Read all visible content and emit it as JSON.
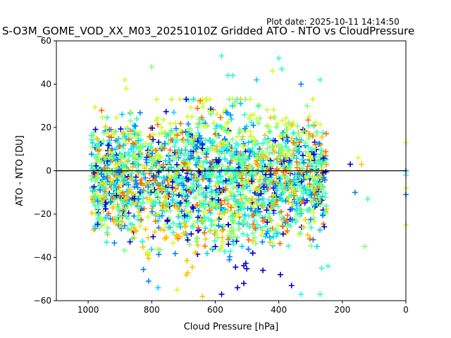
{
  "plot_date": "Plot date: 2025-10-11 14:14:50",
  "title": "S-O3M_GOME_VOD_XX_M03_20251010Z Gridded ATO - NTO vs CloudPressure",
  "chart_data": {
    "type": "scatter",
    "title": "S-O3M_GOME_VOD_XX_M03_20251010Z Gridded ATO - NTO vs CloudPressure",
    "xlabel": "Cloud Pressure [hPa]",
    "ylabel": "ATO - NTO [DU]",
    "xlim": [
      1100,
      0
    ],
    "ylim": [
      -60,
      60
    ],
    "x_ticks": [
      1000,
      800,
      600,
      400,
      200,
      0
    ],
    "y_ticks": [
      -60,
      -40,
      -20,
      0,
      20,
      40,
      60
    ],
    "x_tick_labels": [
      "1000",
      "800",
      "600",
      "400",
      "200",
      "0"
    ],
    "y_tick_labels": [
      "−60",
      "−40",
      "−20",
      "0",
      "20",
      "40",
      "60"
    ],
    "marker": "+",
    "grid": false,
    "legend": "none",
    "reference_line_y": 0,
    "color_palette": [
      "#0000cd",
      "#0080ff",
      "#00d4ff",
      "#29ffce",
      "#7dff7a",
      "#ceff29",
      "#ffc400",
      "#ff6a00"
    ],
    "point_cloud": {
      "description_values_estimated": true,
      "x_core_range": [
        990,
        250
      ],
      "y_core_range": [
        -35,
        28
      ],
      "y_center": -3,
      "approx_point_count": 2600
    },
    "outliers": [
      {
        "x": 580,
        "y": 53,
        "color": "#29ffce"
      },
      {
        "x": 400,
        "y": 52,
        "color": "#29ffce"
      },
      {
        "x": 800,
        "y": 48,
        "color": "#7dff7a"
      },
      {
        "x": 390,
        "y": 47,
        "color": "#29ffce"
      },
      {
        "x": 420,
        "y": 46,
        "color": "#ceff29"
      },
      {
        "x": 560,
        "y": 44,
        "color": "#29ffce"
      },
      {
        "x": 545,
        "y": 44,
        "color": "#29ffce"
      },
      {
        "x": 885,
        "y": 42,
        "color": "#ceff29"
      },
      {
        "x": 270,
        "y": 42,
        "color": "#29ffce"
      },
      {
        "x": 470,
        "y": 42,
        "color": "#00d4ff"
      },
      {
        "x": 330,
        "y": 40,
        "color": "#0080ff"
      },
      {
        "x": 880,
        "y": 38,
        "color": "#ceff29"
      },
      {
        "x": 120,
        "y": -13,
        "color": "#29ffce"
      },
      {
        "x": 130,
        "y": -35,
        "color": "#7dff7a"
      },
      {
        "x": 150,
        "y": 6,
        "color": "#ceff29"
      },
      {
        "x": 140,
        "y": 3,
        "color": "#ffc400"
      },
      {
        "x": 175,
        "y": 3,
        "color": "#0000cd"
      },
      {
        "x": 160,
        "y": -10,
        "color": "#0080ff"
      },
      {
        "x": 0,
        "y": 13,
        "color": "#ceff29"
      },
      {
        "x": 0,
        "y": 0,
        "color": "#0080ff"
      },
      {
        "x": 0,
        "y": -2,
        "color": "#29ffce"
      },
      {
        "x": 0,
        "y": -8,
        "color": "#ceff29"
      },
      {
        "x": 0,
        "y": -11,
        "color": "#0080ff"
      },
      {
        "x": 0,
        "y": -25,
        "color": "#ceff29"
      },
      {
        "x": 580,
        "y": -57,
        "color": "#0000cd"
      },
      {
        "x": 640,
        "y": -58,
        "color": "#ffc400"
      },
      {
        "x": 270,
        "y": -57,
        "color": "#29ffce"
      },
      {
        "x": 330,
        "y": -57,
        "color": "#29ffce"
      },
      {
        "x": 360,
        "y": -53,
        "color": "#0000cd"
      },
      {
        "x": 780,
        "y": -54,
        "color": "#00d4ff"
      },
      {
        "x": 810,
        "y": -51,
        "color": "#0080ff"
      },
      {
        "x": 720,
        "y": -55,
        "color": "#ceff29"
      },
      {
        "x": 510,
        "y": -52,
        "color": "#0000cd"
      },
      {
        "x": 530,
        "y": -54,
        "color": "#0000cd"
      },
      {
        "x": 265,
        "y": -45,
        "color": "#29ffce"
      },
      {
        "x": 245,
        "y": -44,
        "color": "#29ffce"
      },
      {
        "x": 395,
        "y": -48,
        "color": "#0000cd"
      },
      {
        "x": 450,
        "y": -46,
        "color": "#0000cd"
      }
    ]
  }
}
